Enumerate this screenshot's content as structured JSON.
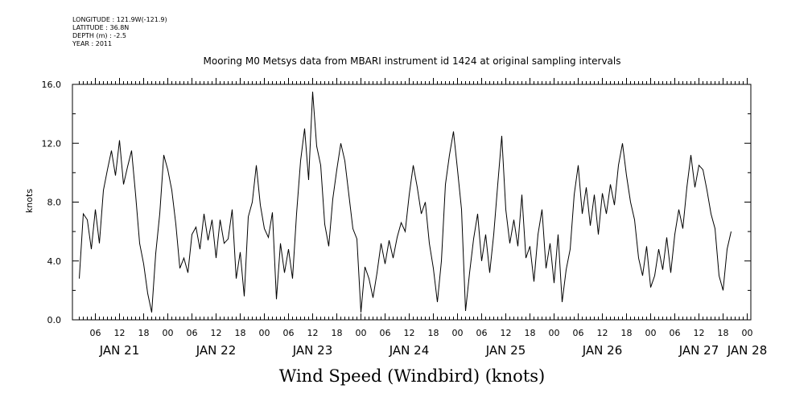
{
  "header_meta": {
    "longitude": "LONGITUDE : 121.9W(-121.9)",
    "latitude": "LATITUDE : 36.8N",
    "depth": "DEPTH (m) : -2.5",
    "year": "YEAR : 2011"
  },
  "chart_data": {
    "type": "line",
    "title": "Mooring M0 Metsys data from MBARI instrument id 1424 at original sampling intervals",
    "xlabel": "Wind Speed (Windbird) (knots)",
    "ylabel": "knots",
    "ylim": [
      0,
      16
    ],
    "y_ticks": [
      "0.0",
      "4.0",
      "8.0",
      "12.0",
      "16.0"
    ],
    "x_unit": "hours since JAN 21 00:00",
    "xlim": [
      2,
      164
    ],
    "x_hour_ticks": [
      {
        "label": "06",
        "hour": 6
      },
      {
        "label": "12",
        "hour": 12
      },
      {
        "label": "18",
        "hour": 18
      },
      {
        "label": "00",
        "hour": 24
      },
      {
        "label": "06",
        "hour": 30
      },
      {
        "label": "12",
        "hour": 36
      },
      {
        "label": "18",
        "hour": 42
      },
      {
        "label": "00",
        "hour": 48
      },
      {
        "label": "06",
        "hour": 54
      },
      {
        "label": "12",
        "hour": 60
      },
      {
        "label": "18",
        "hour": 66
      },
      {
        "label": "00",
        "hour": 72
      },
      {
        "label": "06",
        "hour": 78
      },
      {
        "label": "12",
        "hour": 84
      },
      {
        "label": "18",
        "hour": 90
      },
      {
        "label": "00",
        "hour": 96
      },
      {
        "label": "06",
        "hour": 102
      },
      {
        "label": "12",
        "hour": 108
      },
      {
        "label": "18",
        "hour": 114
      },
      {
        "label": "00",
        "hour": 120
      },
      {
        "label": "06",
        "hour": 126
      },
      {
        "label": "12",
        "hour": 132
      },
      {
        "label": "18",
        "hour": 138
      },
      {
        "label": "00",
        "hour": 144
      },
      {
        "label": "06",
        "hour": 150
      },
      {
        "label": "12",
        "hour": 156
      },
      {
        "label": "18",
        "hour": 162
      },
      {
        "label": "00",
        "hour": 168
      }
    ],
    "x_date_labels": [
      {
        "label": "JAN 21",
        "hour": 12
      },
      {
        "label": "JAN 22",
        "hour": 36
      },
      {
        "label": "JAN 23",
        "hour": 60
      },
      {
        "label": "JAN 24",
        "hour": 84
      },
      {
        "label": "JAN 25",
        "hour": 108
      },
      {
        "label": "JAN 26",
        "hour": 132
      },
      {
        "label": "JAN 27",
        "hour": 156
      },
      {
        "label": "JAN 28",
        "hour": 168
      }
    ],
    "series": [
      {
        "x": [
          2,
          3,
          4,
          5,
          6,
          7,
          8,
          9,
          10,
          11,
          12,
          13,
          14,
          15,
          16,
          17,
          18,
          19,
          20,
          21,
          22,
          23,
          24,
          25,
          26,
          27,
          28,
          29,
          30,
          31,
          32,
          33,
          34,
          35,
          36,
          37,
          38,
          39,
          40,
          41,
          42,
          43,
          44,
          45,
          46,
          47,
          48,
          49,
          50,
          51,
          52,
          53,
          54,
          55,
          56,
          57,
          58,
          59,
          60,
          61,
          62,
          63,
          64,
          65,
          66,
          67,
          68,
          69,
          70,
          71,
          72,
          73,
          74,
          75,
          76,
          77,
          78,
          79,
          80,
          81,
          82,
          83,
          84,
          85,
          86,
          87,
          88,
          89,
          90,
          91,
          92,
          93,
          94,
          95,
          96,
          97,
          98,
          99,
          100,
          101,
          102,
          103,
          104,
          105,
          106,
          107,
          108,
          109,
          110,
          111,
          112,
          113,
          114,
          115,
          116,
          117,
          118,
          119,
          120,
          121,
          122,
          123,
          124,
          125,
          126,
          127,
          128,
          129,
          130,
          131,
          132,
          133,
          134,
          135,
          136,
          137,
          138,
          139,
          140,
          141,
          142,
          143,
          144,
          145,
          146,
          147,
          148,
          149,
          150,
          151,
          152,
          153,
          154,
          155,
          156,
          157,
          158,
          159,
          160,
          161,
          162,
          163,
          164
        ],
        "values": [
          2.8,
          7.2,
          6.8,
          4.8,
          7.5,
          5.2,
          8.8,
          10.2,
          11.5,
          9.8,
          12.2,
          9.2,
          10.4,
          11.5,
          8.5,
          5.2,
          3.8,
          1.8,
          0.5,
          4.5,
          7.2,
          11.2,
          10.2,
          8.8,
          6.5,
          3.5,
          4.2,
          3.2,
          5.8,
          6.3,
          4.8,
          7.2,
          5.4,
          6.8,
          4.2,
          6.8,
          5.2,
          5.5,
          7.5,
          2.8,
          4.6,
          1.6,
          7.0,
          8.0,
          10.5,
          7.8,
          6.2,
          5.6,
          7.3,
          1.4,
          5.2,
          3.2,
          4.8,
          2.8,
          7.2,
          10.8,
          13.0,
          9.5,
          15.5,
          11.8,
          10.5,
          6.5,
          5.0,
          8.2,
          10.2,
          12.0,
          10.8,
          8.5,
          6.2,
          5.5,
          0.5,
          3.6,
          2.8,
          1.5,
          3.2,
          5.2,
          3.8,
          5.4,
          4.2,
          5.6,
          6.6,
          6.0,
          8.5,
          10.5,
          9.0,
          7.2,
          8.0,
          5.2,
          3.5,
          1.2,
          4.0,
          9.2,
          11.2,
          12.8,
          10.2,
          7.5,
          0.6,
          3.2,
          5.5,
          7.2,
          4.0,
          5.8,
          3.2,
          5.8,
          9.2,
          12.5,
          7.5,
          5.2,
          6.8,
          5.0,
          8.5,
          4.2,
          5.0,
          2.6,
          5.8,
          7.5,
          3.5,
          5.2,
          2.5,
          5.8,
          1.2,
          3.4,
          4.8,
          8.5,
          10.5,
          7.2,
          9.0,
          6.4,
          8.5,
          5.8,
          8.6,
          7.2,
          9.2,
          7.8,
          10.5,
          12.0,
          9.8,
          8.0,
          6.8,
          4.2,
          3.0,
          5.0,
          2.2,
          3.0,
          4.8,
          3.4,
          5.6,
          3.2,
          5.8,
          7.5,
          6.2,
          9.0,
          11.2,
          9.0,
          10.5,
          10.2,
          8.8,
          7.2,
          6.2,
          3.0,
          2.0,
          4.8,
          6.0
        ]
      }
    ]
  }
}
